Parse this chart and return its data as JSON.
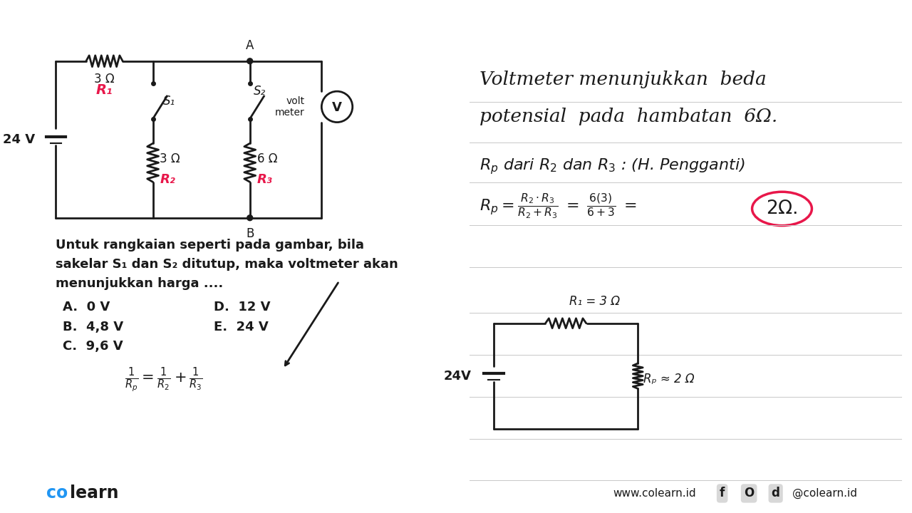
{
  "bg_color": "#ffffff",
  "black": "#1a1a1a",
  "red_color": "#e8174a",
  "line_color": "#e8174a",
  "colearn_blue": "#2196F3",
  "battery_label": "24 V",
  "R1_label": "3 Ω",
  "R1_name": "R₁",
  "R2_label": "3 Ω",
  "R2_name": "R₂",
  "R3_label": "6 Ω",
  "R3_name": "R₃",
  "S1_label": "S₁",
  "S2_label": "S₂",
  "voltmeter_label": "volt\nmeter",
  "node_A": "A",
  "node_B": "B",
  "right_text_line1": "Voltmeter menunjukkan  beda",
  "right_text_line2": "potensial  pada  hambatan  6Ω.",
  "rp_line": "Rₚ dari R₂ dan R₃ : (H. Pengganti)",
  "bottom_text_line1": "Untuk rangkaian seperti pada gambar, bila",
  "bottom_text_line2": "sakelar S₁ dan S₂ ditutup, maka voltmeter akan",
  "bottom_text_line3": "menunjukkan harga ....",
  "choices": [
    [
      "A.  0 V",
      "D.  12 V"
    ],
    [
      "B.  4,8 V",
      "E.  24 V"
    ],
    [
      "C.  9,6 V",
      ""
    ]
  ],
  "footer_right": "www.colearn.id",
  "footer_social": "@colearn.id",
  "sc_battery_label": "24V",
  "sc_R1_label": "R₁ = 3 Ω",
  "sc_Rp_label": "Rₚ ≈ 2 Ω"
}
